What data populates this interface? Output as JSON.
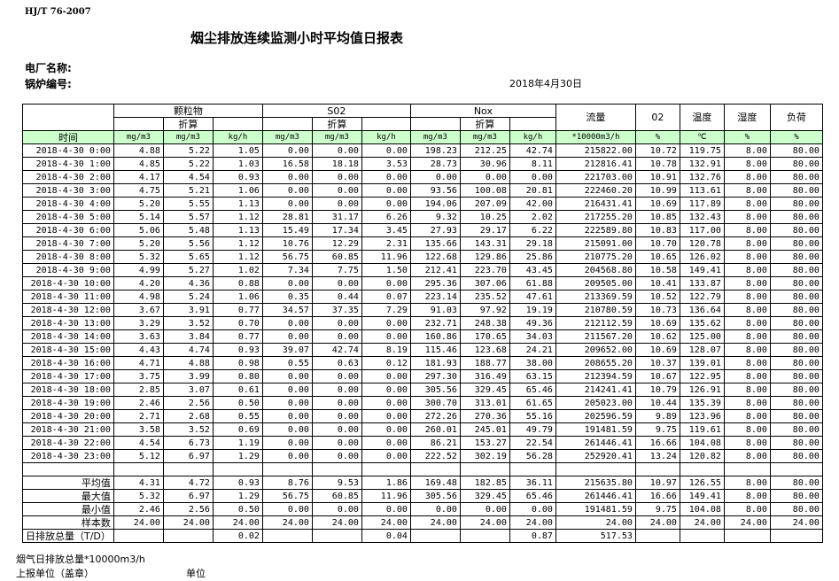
{
  "header": {
    "code": "HJ/T  76-2007",
    "title": "烟尘排放连续监测小时平均值日报表",
    "plant_label": "电厂名称:",
    "boiler_label": "锅炉编号:",
    "date": "2018年4月30日"
  },
  "table": {
    "groups": [
      "颗粒物",
      "S02",
      "Nox"
    ],
    "sub": [
      "折算",
      "折算",
      "折算"
    ],
    "singles": [
      "流量",
      "02",
      "温度",
      "湿度",
      "负荷"
    ],
    "units": [
      "时间",
      "mg/m3",
      "mg/m3",
      "kg/h",
      "mg/m3",
      "mg/m3",
      "kg/h",
      "mg/m3",
      "mg/m3",
      "kg/h",
      "*10000m3/h",
      "%",
      "℃",
      "%",
      "%"
    ],
    "rows": [
      [
        "2018-4-30 0:00",
        "4.88",
        "5.22",
        "1.05",
        "0.00",
        "0.00",
        "0.00",
        "198.23",
        "212.25",
        "42.74",
        "215822.00",
        "10.72",
        "119.75",
        "8.00",
        "80.00"
      ],
      [
        "2018-4-30 1:00",
        "4.85",
        "5.22",
        "1.03",
        "16.58",
        "18.18",
        "3.53",
        "28.73",
        "30.96",
        "8.11",
        "212816.41",
        "10.78",
        "132.91",
        "8.00",
        "80.00"
      ],
      [
        "2018-4-30 2:00",
        "4.17",
        "4.54",
        "0.93",
        "0.00",
        "0.00",
        "0.00",
        "0.00",
        "0.00",
        "0.00",
        "221703.00",
        "10.91",
        "132.76",
        "8.00",
        "80.00"
      ],
      [
        "2018-4-30 3:00",
        "4.75",
        "5.21",
        "1.06",
        "0.00",
        "0.00",
        "0.00",
        "93.56",
        "100.08",
        "20.81",
        "222460.20",
        "10.99",
        "113.61",
        "8.00",
        "80.00"
      ],
      [
        "2018-4-30 4:00",
        "5.20",
        "5.55",
        "1.13",
        "0.00",
        "0.00",
        "0.00",
        "194.06",
        "207.09",
        "42.00",
        "216431.41",
        "10.69",
        "117.89",
        "8.00",
        "80.00"
      ],
      [
        "2018-4-30 5:00",
        "5.14",
        "5.57",
        "1.12",
        "28.81",
        "31.17",
        "6.26",
        "9.32",
        "10.25",
        "2.02",
        "217255.20",
        "10.85",
        "132.43",
        "8.00",
        "80.00"
      ],
      [
        "2018-4-30 6:00",
        "5.06",
        "5.48",
        "1.13",
        "15.49",
        "17.34",
        "3.45",
        "27.93",
        "29.17",
        "6.22",
        "222589.80",
        "10.83",
        "117.00",
        "8.00",
        "80.00"
      ],
      [
        "2018-4-30 7:00",
        "5.20",
        "5.56",
        "1.12",
        "10.76",
        "12.29",
        "2.31",
        "135.66",
        "143.31",
        "29.18",
        "215091.00",
        "10.70",
        "120.78",
        "8.00",
        "80.00"
      ],
      [
        "2018-4-30 8:00",
        "5.32",
        "5.65",
        "1.12",
        "56.75",
        "60.85",
        "11.96",
        "122.68",
        "129.86",
        "25.86",
        "210775.20",
        "10.65",
        "126.02",
        "8.00",
        "80.00"
      ],
      [
        "2018-4-30 9:00",
        "4.99",
        "5.27",
        "1.02",
        "7.34",
        "7.75",
        "1.50",
        "212.41",
        "223.70",
        "43.45",
        "204568.80",
        "10.58",
        "149.41",
        "8.00",
        "80.00"
      ],
      [
        "2018-4-30 10:00",
        "4.20",
        "4.36",
        "0.88",
        "0.00",
        "0.00",
        "0.00",
        "295.36",
        "307.06",
        "61.88",
        "209505.00",
        "10.41",
        "133.87",
        "8.00",
        "80.00"
      ],
      [
        "2018-4-30 11:00",
        "4.98",
        "5.24",
        "1.06",
        "0.35",
        "0.44",
        "0.07",
        "223.14",
        "235.52",
        "47.61",
        "213369.59",
        "10.52",
        "122.79",
        "8.00",
        "80.00"
      ],
      [
        "2018-4-30 12:00",
        "3.67",
        "3.91",
        "0.77",
        "34.57",
        "37.35",
        "7.29",
        "91.03",
        "97.92",
        "19.19",
        "210780.59",
        "10.73",
        "136.64",
        "8.00",
        "80.00"
      ],
      [
        "2018-4-30 13:00",
        "3.29",
        "3.52",
        "0.70",
        "0.00",
        "0.00",
        "0.00",
        "232.71",
        "248.38",
        "49.36",
        "212112.59",
        "10.69",
        "135.62",
        "8.00",
        "80.00"
      ],
      [
        "2018-4-30 14:00",
        "3.63",
        "3.84",
        "0.77",
        "0.00",
        "0.00",
        "0.00",
        "160.86",
        "170.65",
        "34.03",
        "211567.20",
        "10.62",
        "125.00",
        "8.00",
        "80.00"
      ],
      [
        "2018-4-30 15:00",
        "4.43",
        "4.74",
        "0.93",
        "39.07",
        "42.74",
        "8.19",
        "115.46",
        "123.68",
        "24.21",
        "209652.00",
        "10.69",
        "128.07",
        "8.00",
        "80.00"
      ],
      [
        "2018-4-30 16:00",
        "4.71",
        "4.88",
        "0.98",
        "0.55",
        "0.63",
        "0.12",
        "181.93",
        "188.77",
        "38.00",
        "208655.20",
        "10.37",
        "139.01",
        "8.00",
        "80.00"
      ],
      [
        "2018-4-30 17:00",
        "3.75",
        "3.99",
        "0.80",
        "0.00",
        "0.00",
        "0.00",
        "297.30",
        "316.49",
        "63.15",
        "212394.59",
        "10.67",
        "122.95",
        "8.00",
        "80.00"
      ],
      [
        "2018-4-30 18:00",
        "2.85",
        "3.07",
        "0.61",
        "0.00",
        "0.00",
        "0.00",
        "305.56",
        "329.45",
        "65.46",
        "214241.41",
        "10.79",
        "126.91",
        "8.00",
        "80.00"
      ],
      [
        "2018-4-30 19:00",
        "2.46",
        "2.56",
        "0.50",
        "0.00",
        "0.00",
        "0.00",
        "300.70",
        "313.01",
        "61.65",
        "205023.00",
        "10.44",
        "135.39",
        "8.00",
        "80.00"
      ],
      [
        "2018-4-30 20:00",
        "2.71",
        "2.68",
        "0.55",
        "0.00",
        "0.00",
        "0.00",
        "272.26",
        "270.36",
        "55.16",
        "202596.59",
        "9.89",
        "123.96",
        "8.00",
        "80.00"
      ],
      [
        "2018-4-30 21:00",
        "3.58",
        "3.52",
        "0.69",
        "0.00",
        "0.00",
        "0.00",
        "260.01",
        "245.01",
        "49.79",
        "191481.59",
        "9.75",
        "119.61",
        "8.00",
        "80.00"
      ],
      [
        "2018-4-30 22:00",
        "4.54",
        "6.73",
        "1.19",
        "0.00",
        "0.00",
        "0.00",
        "86.21",
        "153.27",
        "22.54",
        "261446.41",
        "16.66",
        "104.08",
        "8.00",
        "80.00"
      ],
      [
        "2018-4-30 23:00",
        "5.12",
        "6.97",
        "1.29",
        "0.00",
        "0.00",
        "0.00",
        "222.52",
        "302.19",
        "56.28",
        "252920.41",
        "13.24",
        "120.82",
        "8.00",
        "80.00"
      ]
    ],
    "stats": [
      [
        "平均值",
        "4.31",
        "4.72",
        "0.93",
        "8.76",
        "9.53",
        "1.86",
        "169.48",
        "182.85",
        "36.11",
        "215635.80",
        "10.97",
        "126.55",
        "8.00",
        "80.00"
      ],
      [
        "最大值",
        "5.32",
        "6.97",
        "1.29",
        "56.75",
        "60.85",
        "11.96",
        "305.56",
        "329.45",
        "65.46",
        "261446.41",
        "16.66",
        "149.41",
        "8.00",
        "80.00"
      ],
      [
        "最小值",
        "2.46",
        "2.56",
        "0.50",
        "0.00",
        "0.00",
        "0.00",
        "0.00",
        "0.00",
        "0.00",
        "191481.59",
        "9.75",
        "104.08",
        "8.00",
        "80.00"
      ],
      [
        "样本数",
        "24.00",
        "24.00",
        "24.00",
        "24.00",
        "24.00",
        "24.00",
        "24.00",
        "24.00",
        "24.00",
        "24.00",
        "24.00",
        "24.00",
        "24.00",
        "24.00"
      ]
    ],
    "total": [
      "日排放总量（T/D）",
      null,
      null,
      "0.02",
      null,
      null,
      "0.04",
      null,
      null,
      "0.87",
      "517.53",
      null,
      null,
      null,
      null
    ]
  },
  "footer": [
    "烟气日排放总量*10000m3/h",
    "上报单位（盖章）",
    "单位"
  ]
}
